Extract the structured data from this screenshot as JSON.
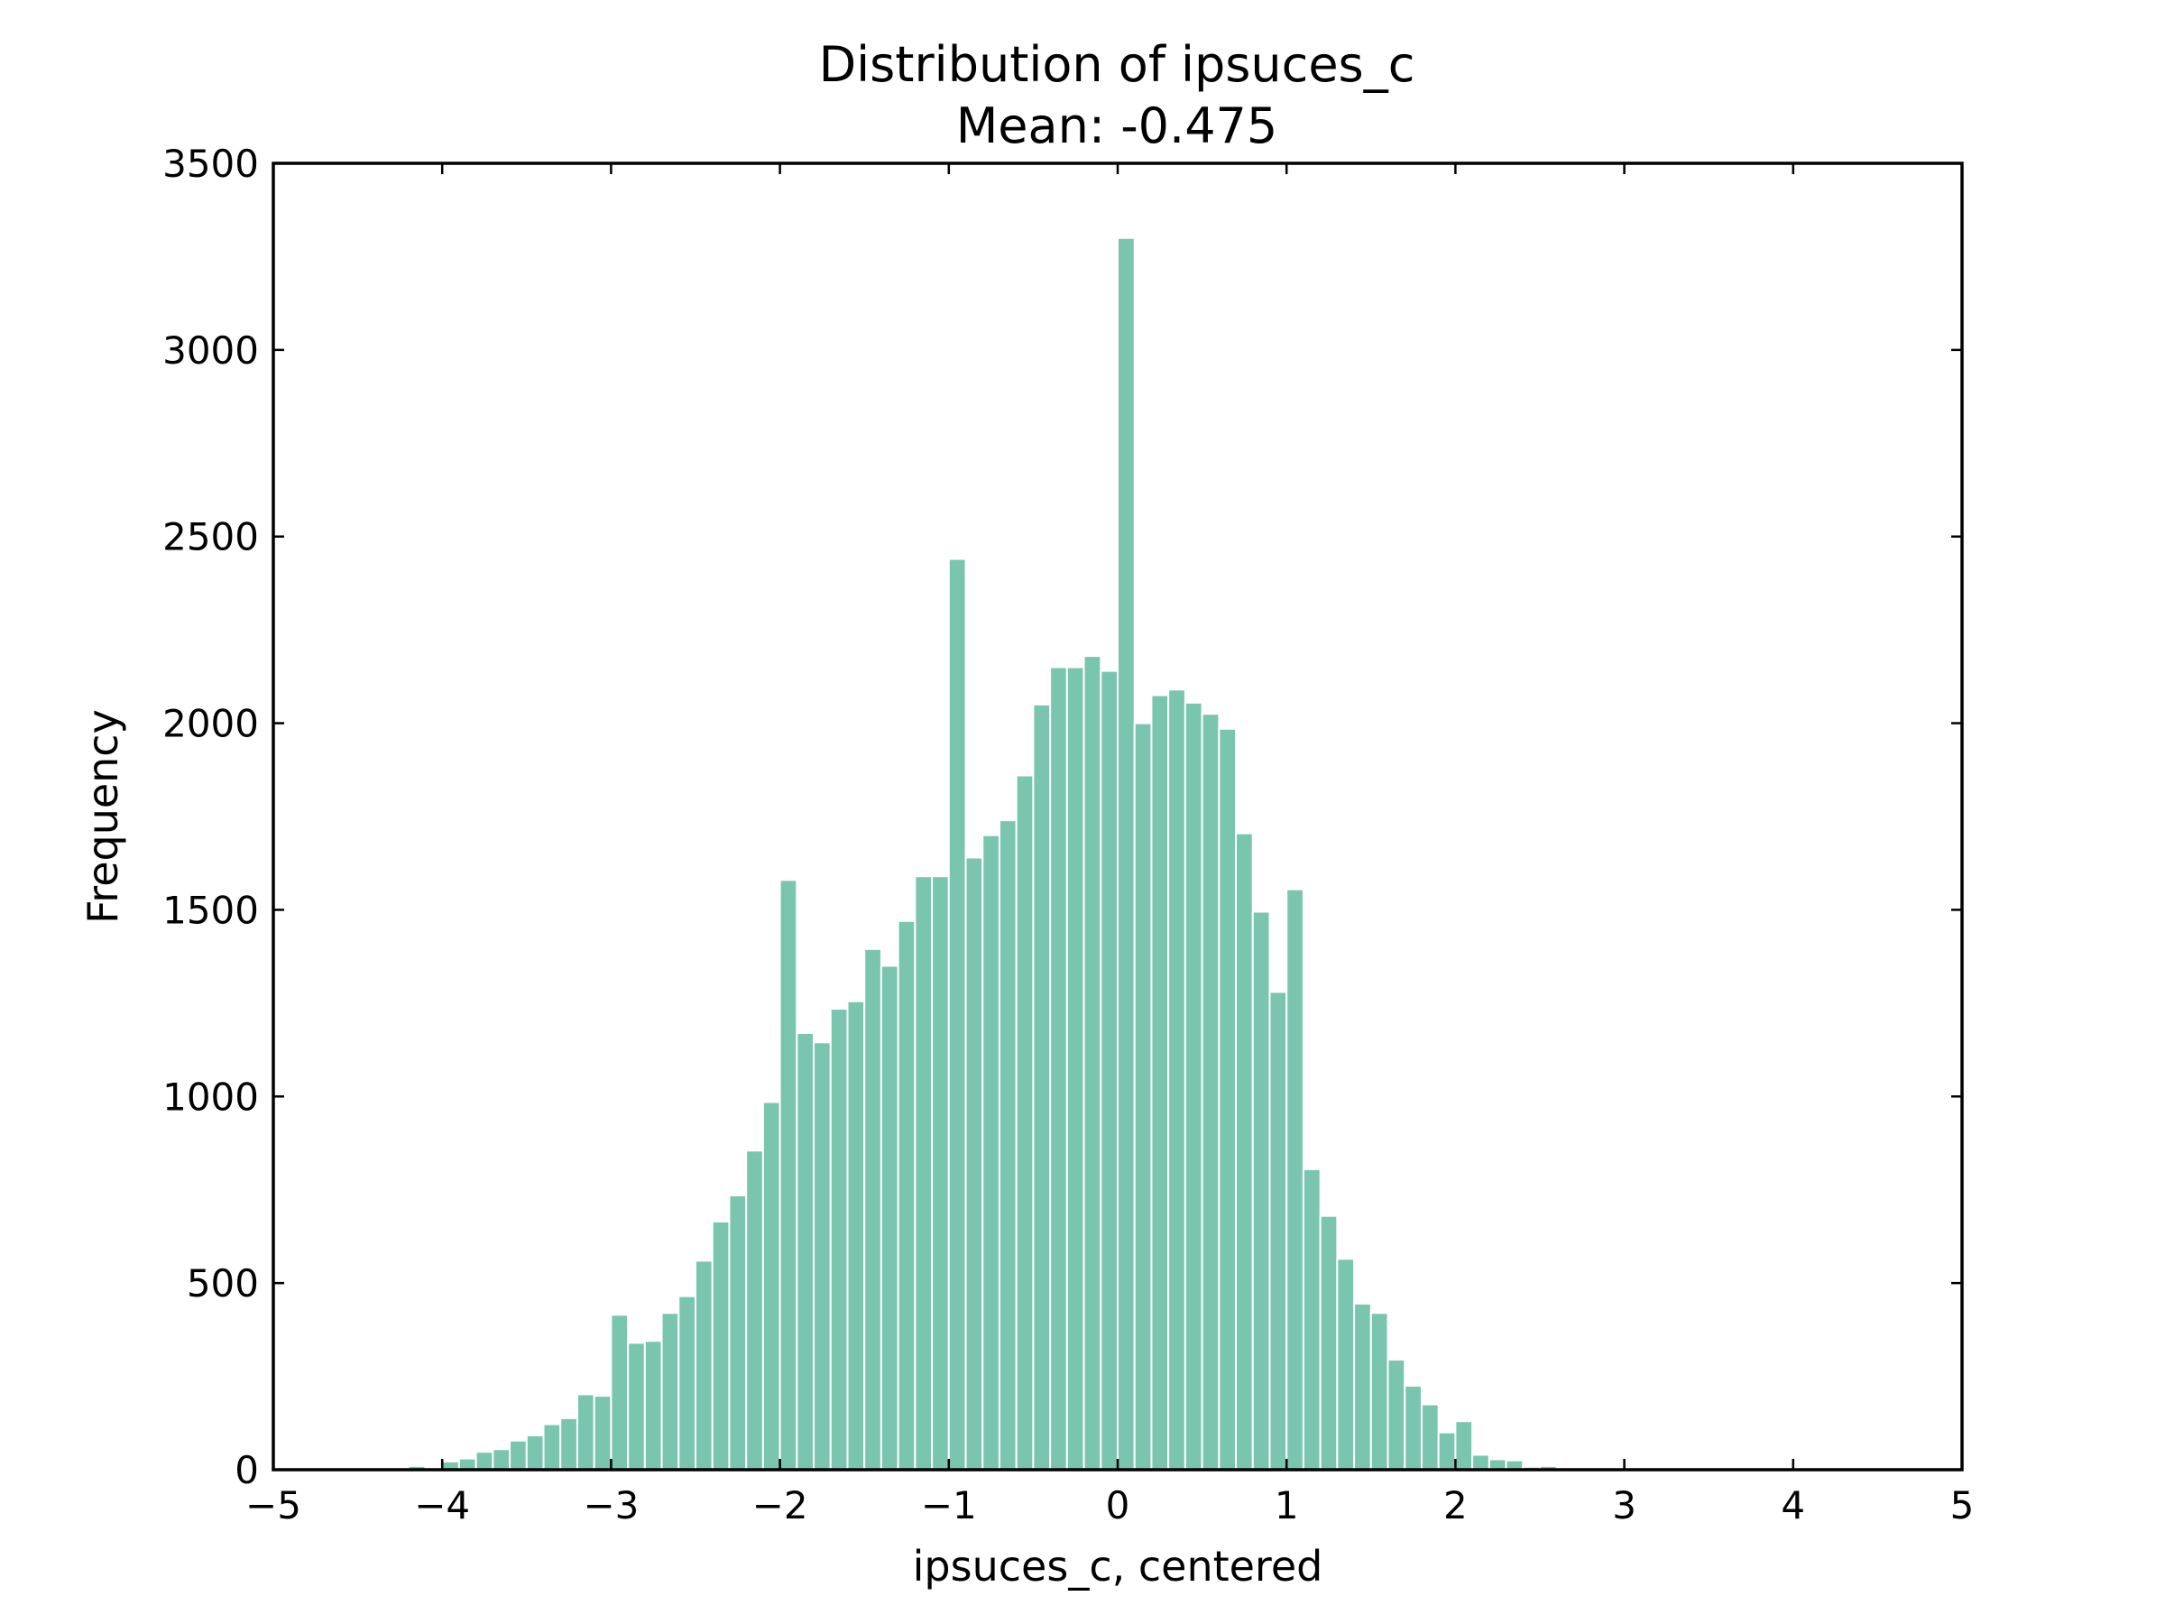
{
  "chart_data": {
    "type": "bar",
    "title": "Distribution of ipsuces_c",
    "subtitle": "Mean: -0.475",
    "xlabel": "ipsuces_c, centered",
    "ylabel": "Frequency",
    "xlim": [
      -5,
      5
    ],
    "ylim": [
      0,
      3500
    ],
    "xticks": [
      -5,
      -4,
      -3,
      -2,
      -1,
      0,
      1,
      2,
      3,
      4,
      5
    ],
    "xtick_labels": [
      "−5",
      "−4",
      "−3",
      "−2",
      "−1",
      "0",
      "1",
      "2",
      "3",
      "4",
      "5"
    ],
    "yticks": [
      0,
      500,
      1000,
      1500,
      2000,
      2500,
      3000,
      3500
    ],
    "ytick_labels": [
      "0",
      "500",
      "1000",
      "1500",
      "2000",
      "2500",
      "3000",
      "3500"
    ],
    "bin_start": -4.3,
    "bin_width": 0.1,
    "values": [
      2,
      10,
      4,
      22,
      30,
      48,
      55,
      78,
      92,
      122,
      138,
      202,
      198,
      415,
      340,
      345,
      420,
      465,
      560,
      665,
      735,
      855,
      985,
      1580,
      1170,
      1145,
      1235,
      1255,
      1395,
      1350,
      1470,
      1590,
      1590,
      2440,
      1640,
      1700,
      1740,
      1860,
      2050,
      2150,
      2150,
      2180,
      2140,
      3300,
      2000,
      2075,
      2090,
      2055,
      2025,
      1985,
      1705,
      1495,
      1280,
      1555,
      805,
      680,
      565,
      445,
      420,
      295,
      225,
      175,
      100,
      130,
      40,
      28,
      25,
      8,
      10,
      3,
      2
    ],
    "grid": false,
    "bar_color": "#7ac5ae"
  }
}
